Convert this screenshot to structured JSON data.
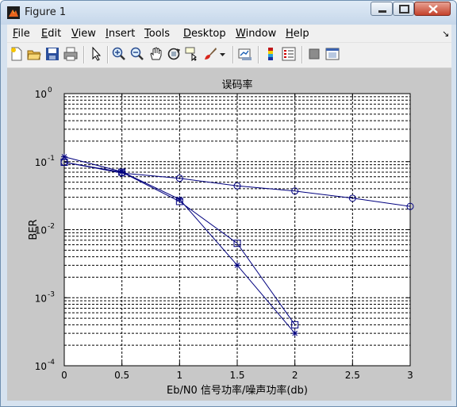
{
  "window": {
    "title": "Figure 1"
  },
  "menu": [
    "File",
    "Edit",
    "View",
    "Insert",
    "Tools",
    "Desktop",
    "Window",
    "Help"
  ],
  "toolbar_icons": [
    "new-figure-icon",
    "open-file-icon",
    "save-icon",
    "print-icon",
    "select-arrow-icon",
    "zoom-in-icon",
    "zoom-out-icon",
    "pan-hand-icon",
    "rotate-3d-icon",
    "data-cursor-icon",
    "brush-icon",
    "link-plot-icon",
    "colorbar-icon",
    "legend-icon",
    "hide-plot-tools-icon",
    "show-plot-tools-icon"
  ],
  "chart_data": {
    "type": "line",
    "title": "误码率",
    "xlabel": "Eb/N0 信号功率/噪声功率(db)",
    "ylabel": "BER",
    "xlim": [
      0,
      3
    ],
    "ylim": [
      0.0001,
      1
    ],
    "yscale": "log",
    "grid": true,
    "xticks": [
      "0",
      "0.5",
      "1",
      "1.5",
      "2",
      "2.5",
      "3"
    ],
    "yticks": [
      {
        "base": "10",
        "exp": "0"
      },
      {
        "base": "10",
        "exp": "-1"
      },
      {
        "base": "10",
        "exp": "-2"
      },
      {
        "base": "10",
        "exp": "-3"
      },
      {
        "base": "10",
        "exp": "-4"
      }
    ],
    "series": [
      {
        "marker": "circle",
        "color": "#00007f",
        "x": [
          0,
          0.5,
          1,
          1.5,
          2,
          2.5,
          3
        ],
        "y": [
          0.098,
          0.068,
          0.057,
          0.044,
          0.037,
          0.029,
          0.022
        ]
      },
      {
        "marker": "square",
        "color": "#00007f",
        "x": [
          0,
          0.5,
          1,
          1.5,
          2
        ],
        "y": [
          0.098,
          0.07,
          0.026,
          0.0063,
          0.0004
        ]
      },
      {
        "marker": "star",
        "color": "#00007f",
        "x": [
          0,
          0.5,
          1,
          1.5,
          2
        ],
        "y": [
          0.118,
          0.071,
          0.028,
          0.003,
          0.0003
        ]
      }
    ]
  }
}
